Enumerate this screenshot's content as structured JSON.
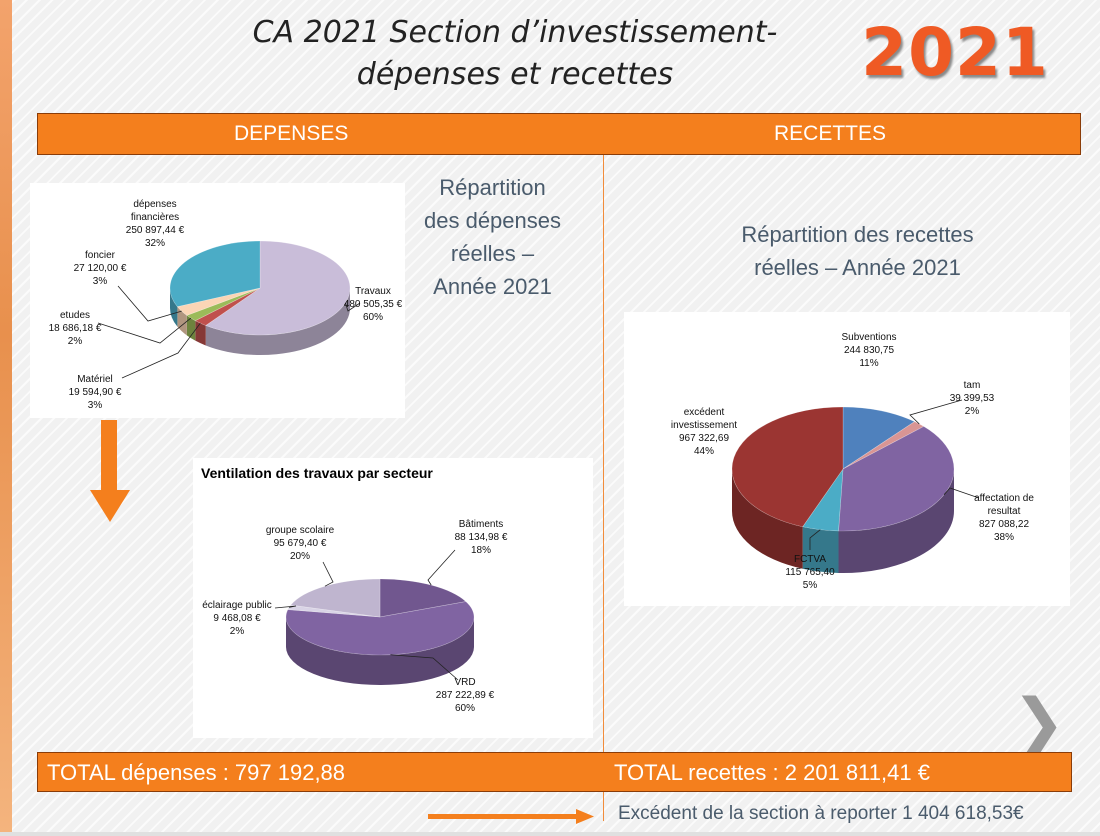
{
  "title_line1": "CA  2021 Section d’investissement-",
  "title_line2": "dépenses  et recettes",
  "year": "2021",
  "header": {
    "left": "DEPENSES",
    "right": "RECETTES"
  },
  "rep_depenses": [
    "Répartition",
    "des dépenses",
    "réelles –",
    "Année 2021"
  ],
  "rep_recettes": [
    "Répartition des recettes",
    "réelles – Année 2021"
  ],
  "totals": {
    "depenses": "TOTAL  dépenses  : 797 192,88",
    "recettes": "TOTAL recettes : 2 201 811,41 €"
  },
  "excedent": "Excédent de la section à reporter  1 404 618,53€",
  "chart_data": [
    {
      "type": "pie",
      "title": "",
      "slices": [
        {
          "lines": [
            "Travaux",
            "480 505,35 €",
            "60%"
          ],
          "value": 480505.35,
          "percent": 60,
          "color": "#c9bdd9"
        },
        {
          "lines": [
            "Matériel",
            "19 594,90 €",
            "3%"
          ],
          "value": 19594.9,
          "percent": 3,
          "color": "#c0504d"
        },
        {
          "lines": [
            "etudes",
            "18 686,18 €",
            "2%"
          ],
          "value": 18686.18,
          "percent": 2,
          "color": "#9bbb59"
        },
        {
          "lines": [
            "foncier",
            "27 120,00 €",
            "3%"
          ],
          "value": 27120.0,
          "percent": 3,
          "color": "#fbd5b5"
        },
        {
          "lines": [
            "dépenses",
            "financières",
            "250 897,44 €",
            "32%"
          ],
          "value": 250897.44,
          "percent": 32,
          "color": "#4bacc6"
        }
      ]
    },
    {
      "type": "pie",
      "title": "Ventilation des travaux par secteur",
      "slices": [
        {
          "lines": [
            "Bâtiments",
            "88 134,98 €",
            "18%"
          ],
          "value": 88134.98,
          "percent": 18,
          "color": "#71578f"
        },
        {
          "lines": [
            "VRD",
            "287 222,89 €",
            "60%"
          ],
          "value": 287222.89,
          "percent": 60,
          "color": "#8064a2"
        },
        {
          "lines": [
            "éclairage public",
            "9 468,08 €",
            "2%"
          ],
          "value": 9468.08,
          "percent": 2,
          "color": "#d9d4e6"
        },
        {
          "lines": [
            "groupe scolaire",
            "95 679,40 €",
            "20%"
          ],
          "value": 95679.4,
          "percent": 20,
          "color": "#bfb5cf"
        }
      ]
    },
    {
      "type": "pie",
      "title": "",
      "slices": [
        {
          "lines": [
            "Subventions",
            "244 830,75",
            "11%"
          ],
          "value": 244830.75,
          "percent": 11,
          "color": "#4f81bd"
        },
        {
          "lines": [
            "tam",
            "39 399,53",
            "2%"
          ],
          "value": 39399.53,
          "percent": 2,
          "color": "#d99594"
        },
        {
          "lines": [
            "affectation de",
            "resultat",
            "827 088,22",
            "38%"
          ],
          "value": 827088.22,
          "percent": 38,
          "color": "#8064a2"
        },
        {
          "lines": [
            "FCTVA",
            "115 765,40",
            "5%"
          ],
          "value": 115765.4,
          "percent": 5,
          "color": "#4bacc6"
        },
        {
          "lines": [
            "excédent",
            "investissement",
            "967 322,69",
            "44%"
          ],
          "value": 967322.69,
          "percent": 44,
          "color": "#9b3532"
        }
      ]
    }
  ]
}
